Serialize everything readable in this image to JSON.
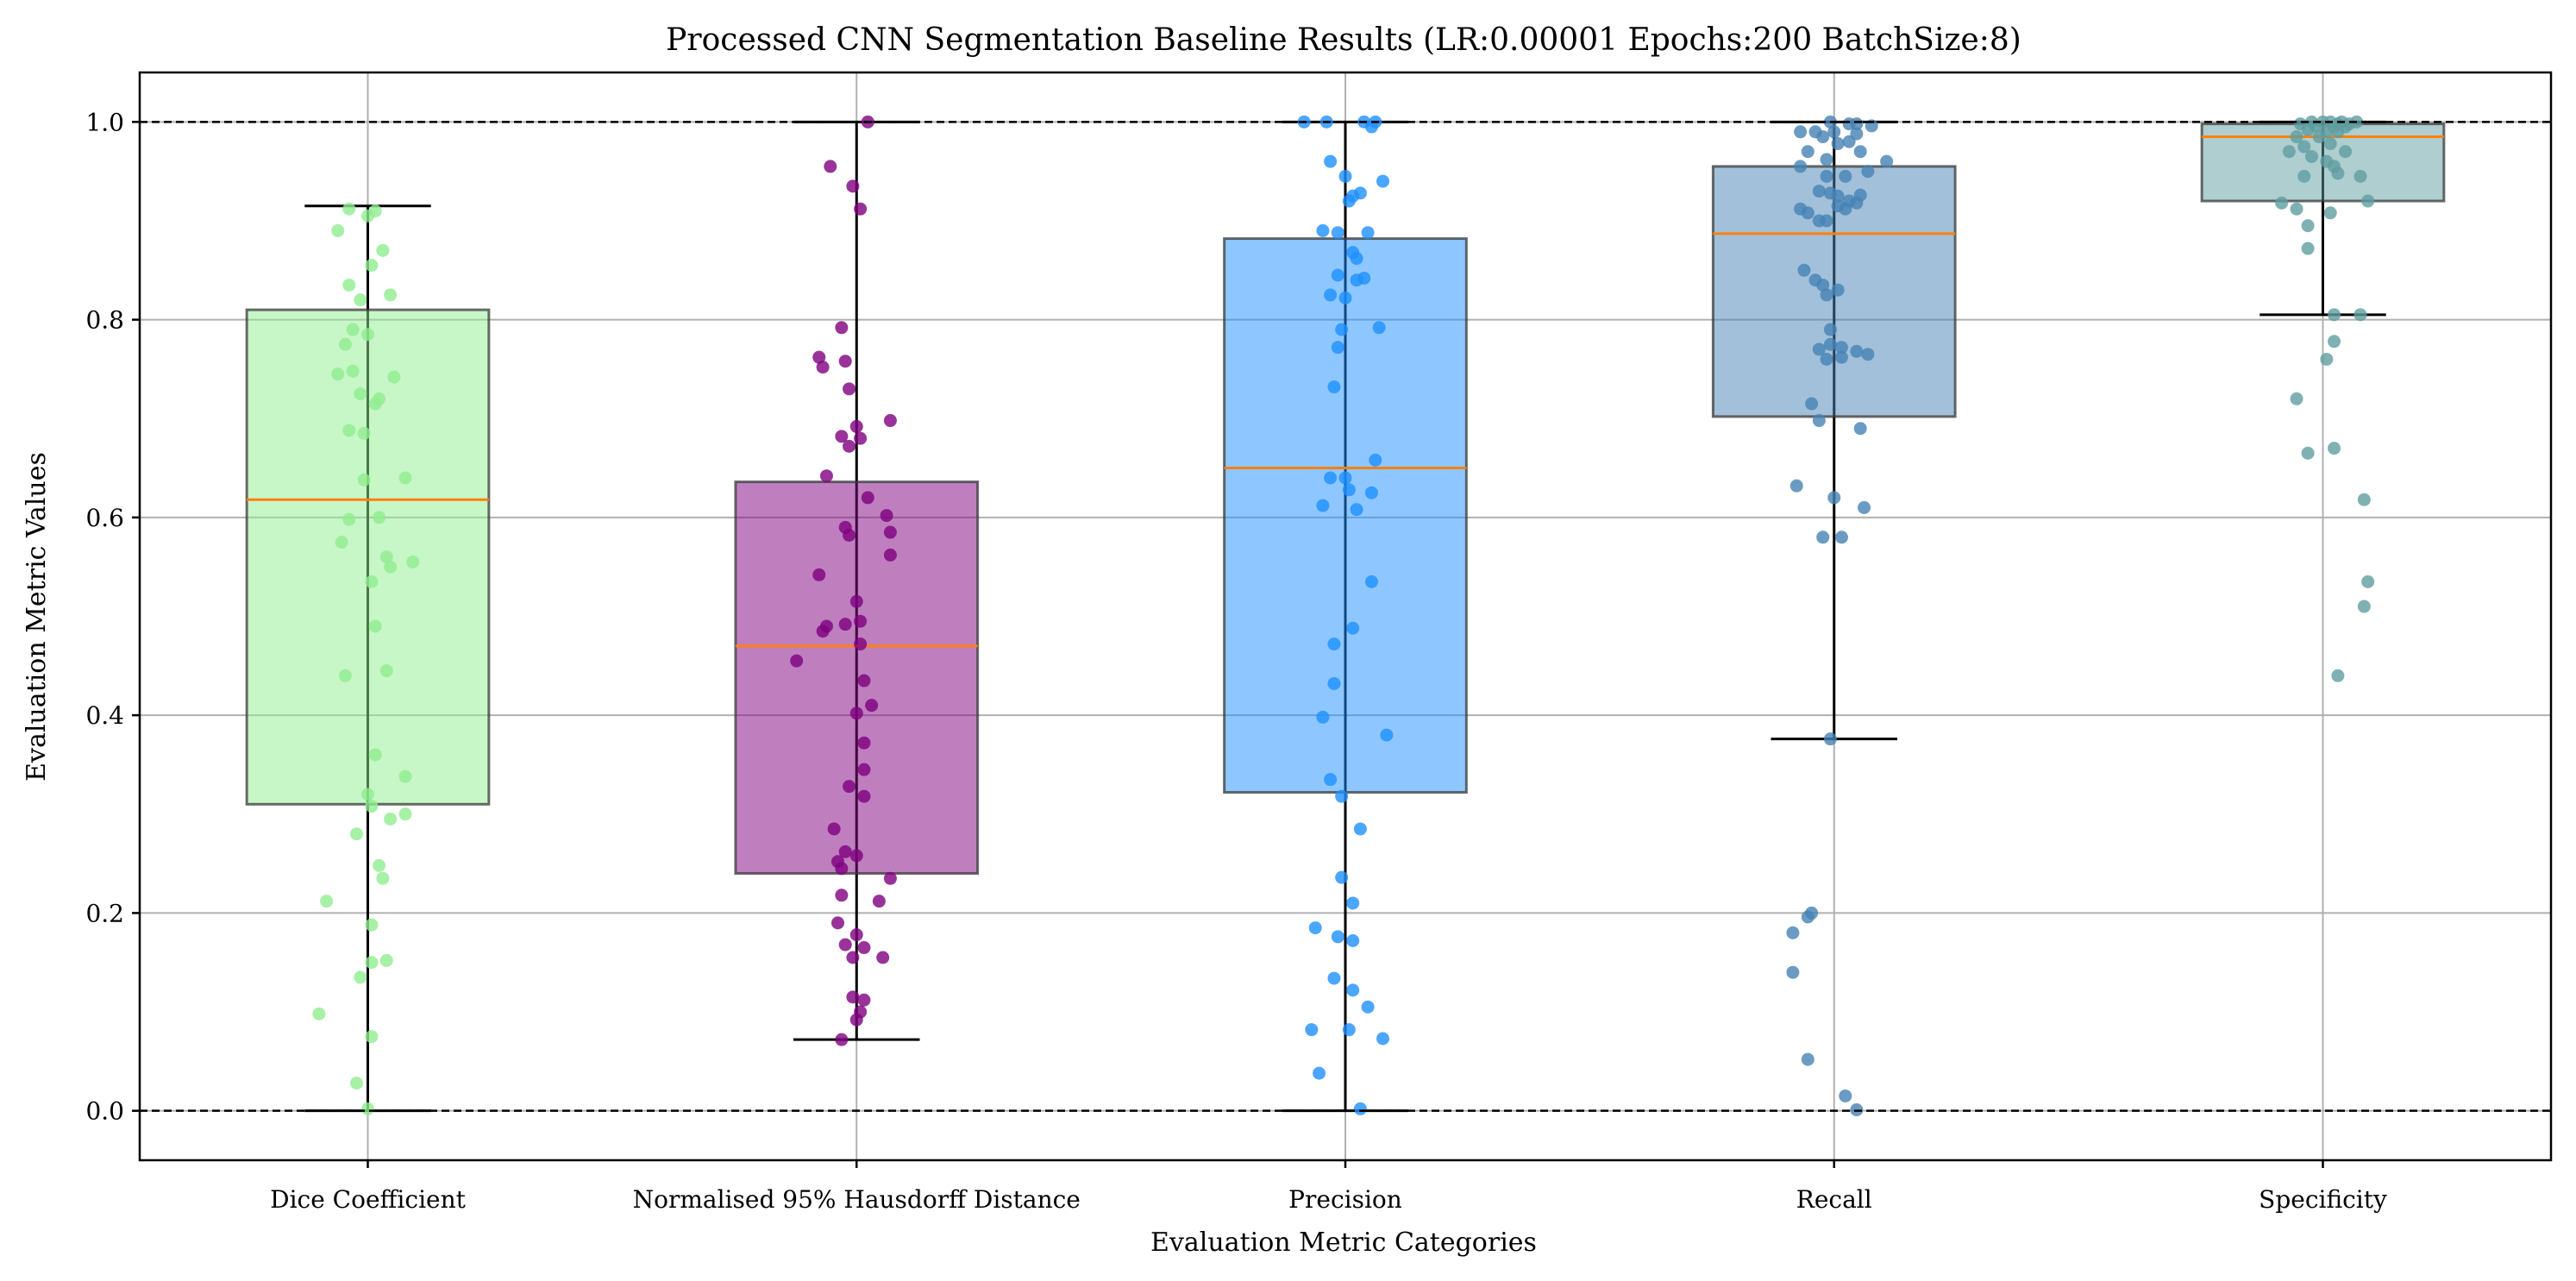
{
  "chart_data": {
    "type": "box",
    "title": "Processed CNN Segmentation Baseline Results (LR:0.00001 Epochs:200 BatchSize:8)",
    "xlabel": "Evaluation Metric Categories",
    "ylabel": "Evaluation Metric Values",
    "ylim": [
      -0.05,
      1.05
    ],
    "yticks": [
      0.0,
      0.2,
      0.4,
      0.6,
      0.8,
      1.0
    ],
    "ytick_labels": [
      "0.0",
      "0.2",
      "0.4",
      "0.6",
      "0.8",
      "1.0"
    ],
    "grid": true,
    "reference_lines": [
      0.0,
      1.0
    ],
    "categories": [
      "Dice Coefficient",
      "Normalised 95% Hausdorff Distance",
      "Precision",
      "Recall",
      "Specificity"
    ],
    "colors": [
      "#90ee90",
      "#800080",
      "#1e90ff",
      "#4682b4",
      "#5f9ea0"
    ],
    "median_color": "#ff7f0e",
    "boxes": [
      {
        "q1": 0.31,
        "median": 0.618,
        "q3": 0.81,
        "whisker_low": 0.0,
        "whisker_high": 0.915
      },
      {
        "q1": 0.24,
        "median": 0.47,
        "q3": 0.636,
        "whisker_low": 0.072,
        "whisker_high": 1.0
      },
      {
        "q1": 0.322,
        "median": 0.65,
        "q3": 0.882,
        "whisker_low": 0.0,
        "whisker_high": 1.0
      },
      {
        "q1": 0.702,
        "median": 0.887,
        "q3": 0.955,
        "whisker_low": 0.376,
        "whisker_high": 1.0
      },
      {
        "q1": 0.92,
        "median": 0.985,
        "q3": 0.998,
        "whisker_low": 0.805,
        "whisker_high": 1.0
      }
    ],
    "points": [
      [
        [
          -0.05,
          0.912
        ],
        [
          0.0,
          0.905
        ],
        [
          0.02,
          0.91
        ],
        [
          -0.08,
          0.89
        ],
        [
          0.04,
          0.87
        ],
        [
          0.01,
          0.855
        ],
        [
          -0.05,
          0.835
        ],
        [
          0.06,
          0.825
        ],
        [
          -0.02,
          0.82
        ],
        [
          -0.04,
          0.79
        ],
        [
          0.0,
          0.785
        ],
        [
          -0.06,
          0.775
        ],
        [
          -0.08,
          0.745
        ],
        [
          -0.04,
          0.748
        ],
        [
          0.07,
          0.742
        ],
        [
          -0.02,
          0.725
        ],
        [
          0.03,
          0.72
        ],
        [
          0.02,
          0.715
        ],
        [
          -0.05,
          0.688
        ],
        [
          -0.01,
          0.685
        ],
        [
          0.1,
          0.64
        ],
        [
          -0.01,
          0.638
        ],
        [
          0.03,
          0.6
        ],
        [
          -0.05,
          0.598
        ],
        [
          -0.07,
          0.575
        ],
        [
          0.05,
          0.56
        ],
        [
          0.06,
          0.55
        ],
        [
          0.12,
          0.555
        ],
        [
          0.01,
          0.535
        ],
        [
          0.02,
          0.49
        ],
        [
          -0.06,
          0.44
        ],
        [
          0.05,
          0.445
        ],
        [
          0.02,
          0.36
        ],
        [
          0.1,
          0.338
        ],
        [
          0.0,
          0.32
        ],
        [
          0.01,
          0.308
        ],
        [
          0.1,
          0.3
        ],
        [
          0.06,
          0.295
        ],
        [
          -0.03,
          0.28
        ],
        [
          0.03,
          0.248
        ],
        [
          0.04,
          0.235
        ],
        [
          -0.11,
          0.212
        ],
        [
          0.01,
          0.188
        ],
        [
          0.01,
          0.15
        ],
        [
          0.05,
          0.152
        ],
        [
          -0.02,
          0.135
        ],
        [
          -0.13,
          0.098
        ],
        [
          0.01,
          0.075
        ],
        [
          -0.03,
          0.028
        ],
        [
          0.0,
          0.002
        ]
      ],
      [
        [
          0.03,
          1.0
        ],
        [
          -0.07,
          0.955
        ],
        [
          -0.01,
          0.935
        ],
        [
          0.01,
          0.912
        ],
        [
          -0.04,
          0.792
        ],
        [
          -0.1,
          0.762
        ],
        [
          -0.09,
          0.752
        ],
        [
          -0.03,
          0.758
        ],
        [
          -0.02,
          0.73
        ],
        [
          0.09,
          0.698
        ],
        [
          0.0,
          0.692
        ],
        [
          0.01,
          0.68
        ],
        [
          -0.04,
          0.682
        ],
        [
          -0.02,
          0.672
        ],
        [
          -0.08,
          0.642
        ],
        [
          0.03,
          0.62
        ],
        [
          0.08,
          0.602
        ],
        [
          0.09,
          0.585
        ],
        [
          -0.03,
          0.59
        ],
        [
          -0.02,
          0.582
        ],
        [
          0.09,
          0.562
        ],
        [
          -0.1,
          0.542
        ],
        [
          0.0,
          0.515
        ],
        [
          0.01,
          0.495
        ],
        [
          -0.03,
          0.492
        ],
        [
          -0.16,
          0.455
        ],
        [
          -0.08,
          0.49
        ],
        [
          -0.09,
          0.485
        ],
        [
          0.01,
          0.472
        ],
        [
          0.02,
          0.435
        ],
        [
          0.04,
          0.41
        ],
        [
          0.0,
          0.402
        ],
        [
          0.02,
          0.372
        ],
        [
          0.02,
          0.345
        ],
        [
          -0.02,
          0.328
        ],
        [
          0.02,
          0.318
        ],
        [
          -0.06,
          0.285
        ],
        [
          0.09,
          0.235
        ],
        [
          -0.03,
          0.262
        ],
        [
          0.0,
          0.258
        ],
        [
          -0.05,
          0.252
        ],
        [
          -0.04,
          0.245
        ],
        [
          0.06,
          0.212
        ],
        [
          -0.04,
          0.218
        ],
        [
          -0.05,
          0.19
        ],
        [
          0.0,
          0.178
        ],
        [
          -0.03,
          0.168
        ],
        [
          0.02,
          0.165
        ],
        [
          0.07,
          0.155
        ],
        [
          -0.01,
          0.155
        ],
        [
          -0.01,
          0.115
        ],
        [
          0.02,
          0.112
        ],
        [
          0.01,
          0.1
        ],
        [
          0.0,
          0.092
        ],
        [
          -0.04,
          0.072
        ]
      ],
      [
        [
          -0.11,
          1.0
        ],
        [
          -0.05,
          1.0
        ],
        [
          0.05,
          1.0
        ],
        [
          0.08,
          1.0
        ],
        [
          0.07,
          0.995
        ],
        [
          -0.04,
          0.96
        ],
        [
          0.0,
          0.945
        ],
        [
          0.1,
          0.94
        ],
        [
          0.01,
          0.92
        ],
        [
          0.02,
          0.925
        ],
        [
          0.04,
          0.928
        ],
        [
          -0.02,
          0.888
        ],
        [
          0.06,
          0.888
        ],
        [
          0.02,
          0.868
        ],
        [
          0.03,
          0.862
        ],
        [
          -0.06,
          0.89
        ],
        [
          0.05,
          0.842
        ],
        [
          -0.02,
          0.845
        ],
        [
          0.03,
          0.84
        ],
        [
          -0.04,
          0.825
        ],
        [
          0.0,
          0.822
        ],
        [
          0.09,
          0.792
        ],
        [
          -0.01,
          0.79
        ],
        [
          -0.02,
          0.772
        ],
        [
          -0.03,
          0.732
        ],
        [
          0.08,
          0.658
        ],
        [
          -0.04,
          0.64
        ],
        [
          0.0,
          0.64
        ],
        [
          0.01,
          0.628
        ],
        [
          0.03,
          0.608
        ],
        [
          0.07,
          0.625
        ],
        [
          -0.06,
          0.612
        ],
        [
          0.07,
          0.535
        ],
        [
          0.02,
          0.488
        ],
        [
          -0.03,
          0.472
        ],
        [
          -0.03,
          0.432
        ],
        [
          -0.06,
          0.398
        ],
        [
          0.11,
          0.38
        ],
        [
          -0.04,
          0.335
        ],
        [
          -0.01,
          0.318
        ],
        [
          0.04,
          0.285
        ],
        [
          -0.01,
          0.236
        ],
        [
          0.02,
          0.21
        ],
        [
          -0.08,
          0.185
        ],
        [
          -0.02,
          0.176
        ],
        [
          0.02,
          0.172
        ],
        [
          -0.03,
          0.134
        ],
        [
          0.02,
          0.122
        ],
        [
          0.06,
          0.105
        ],
        [
          -0.09,
          0.082
        ],
        [
          0.01,
          0.082
        ],
        [
          0.1,
          0.073
        ],
        [
          -0.07,
          0.038
        ],
        [
          0.04,
          0.002
        ]
      ],
      [
        [
          -0.01,
          1.0
        ],
        [
          0.04,
          0.998
        ],
        [
          0.06,
          0.998
        ],
        [
          0.1,
          0.996
        ],
        [
          -0.09,
          0.99
        ],
        [
          -0.05,
          0.99
        ],
        [
          0.0,
          0.99
        ],
        [
          0.06,
          0.988
        ],
        [
          -0.03,
          0.985
        ],
        [
          0.04,
          0.98
        ],
        [
          0.01,
          0.978
        ],
        [
          -0.07,
          0.97
        ],
        [
          0.07,
          0.97
        ],
        [
          -0.02,
          0.962
        ],
        [
          0.14,
          0.96
        ],
        [
          -0.09,
          0.955
        ],
        [
          0.09,
          0.95
        ],
        [
          -0.02,
          0.945
        ],
        [
          0.03,
          0.945
        ],
        [
          -0.04,
          0.93
        ],
        [
          -0.01,
          0.928
        ],
        [
          0.07,
          0.926
        ],
        [
          0.01,
          0.925
        ],
        [
          0.04,
          0.92
        ],
        [
          0.06,
          0.918
        ],
        [
          0.03,
          0.912
        ],
        [
          -0.09,
          0.912
        ],
        [
          -0.07,
          0.908
        ],
        [
          -0.04,
          0.9
        ],
        [
          -0.02,
          0.9
        ],
        [
          0.01,
          0.915
        ],
        [
          -0.08,
          0.85
        ],
        [
          -0.05,
          0.84
        ],
        [
          -0.03,
          0.835
        ],
        [
          0.01,
          0.83
        ],
        [
          -0.02,
          0.825
        ],
        [
          -0.01,
          0.79
        ],
        [
          -0.01,
          0.775
        ],
        [
          -0.04,
          0.77
        ],
        [
          0.02,
          0.772
        ],
        [
          0.09,
          0.765
        ],
        [
          0.06,
          0.768
        ],
        [
          0.02,
          0.762
        ],
        [
          -0.02,
          0.76
        ],
        [
          -0.06,
          0.715
        ],
        [
          -0.04,
          0.698
        ],
        [
          0.07,
          0.69
        ],
        [
          -0.1,
          0.632
        ],
        [
          0.0,
          0.62
        ],
        [
          0.08,
          0.61
        ],
        [
          -0.03,
          0.58
        ],
        [
          0.02,
          0.58
        ],
        [
          -0.01,
          0.376
        ],
        [
          -0.06,
          0.2
        ],
        [
          -0.07,
          0.196
        ],
        [
          -0.11,
          0.18
        ],
        [
          -0.11,
          0.14
        ],
        [
          -0.07,
          0.052
        ],
        [
          0.03,
          0.015
        ],
        [
          0.06,
          0.001
        ]
      ],
      [
        [
          -0.03,
          1.0
        ],
        [
          0.0,
          1.0
        ],
        [
          0.02,
          1.0
        ],
        [
          0.05,
          1.0
        ],
        [
          0.09,
          1.0
        ],
        [
          -0.06,
          0.998
        ],
        [
          0.04,
          0.998
        ],
        [
          0.07,
          0.998
        ],
        [
          -0.02,
          0.996
        ],
        [
          0.03,
          0.995
        ],
        [
          0.06,
          0.995
        ],
        [
          -0.04,
          0.992
        ],
        [
          0.01,
          0.99
        ],
        [
          0.04,
          0.99
        ],
        [
          -0.07,
          0.985
        ],
        [
          -0.01,
          0.985
        ],
        [
          -0.05,
          0.975
        ],
        [
          0.02,
          0.978
        ],
        [
          -0.09,
          0.97
        ],
        [
          0.06,
          0.97
        ],
        [
          -0.03,
          0.965
        ],
        [
          0.01,
          0.96
        ],
        [
          0.03,
          0.955
        ],
        [
          0.04,
          0.948
        ],
        [
          0.1,
          0.945
        ],
        [
          -0.05,
          0.945
        ],
        [
          0.12,
          0.92
        ],
        [
          -0.11,
          0.918
        ],
        [
          -0.07,
          0.912
        ],
        [
          0.02,
          0.908
        ],
        [
          -0.04,
          0.895
        ],
        [
          -0.04,
          0.872
        ],
        [
          0.03,
          0.805
        ],
        [
          0.1,
          0.805
        ],
        [
          0.03,
          0.778
        ],
        [
          0.01,
          0.76
        ],
        [
          -0.07,
          0.72
        ],
        [
          0.03,
          0.67
        ],
        [
          -0.04,
          0.665
        ],
        [
          0.11,
          0.618
        ],
        [
          0.12,
          0.535
        ],
        [
          0.11,
          0.51
        ],
        [
          0.04,
          0.44
        ]
      ]
    ]
  }
}
